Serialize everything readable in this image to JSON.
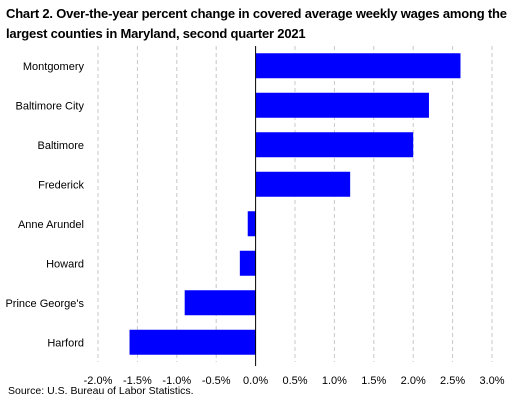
{
  "chart_data": {
    "type": "bar",
    "orientation": "horizontal",
    "title": "Chart 2. Over-the-year percent change in covered average weekly wages among the largest counties in Maryland, second quarter 2021",
    "categories": [
      "Montgomery",
      "Baltimore City",
      "Baltimore",
      "Frederick",
      "Anne Arundel",
      "Howard",
      "Prince George's",
      "Harford"
    ],
    "values": [
      2.6,
      2.2,
      2.0,
      1.2,
      -0.1,
      -0.2,
      -0.9,
      -1.6
    ],
    "xlim": [
      -2.0,
      3.0
    ],
    "xticks": [
      -2.0,
      -1.5,
      -1.0,
      -0.5,
      0.0,
      0.5,
      1.0,
      1.5,
      2.0,
      2.5,
      3.0
    ],
    "xtick_labels": [
      "-2.0%",
      "-1.5%",
      "-1.0%",
      "-0.5%",
      "0.0%",
      "0.5%",
      "1.0%",
      "1.5%",
      "2.0%",
      "2.5%",
      "3.0%"
    ],
    "grid": "vertical dashed",
    "bar_color": "#0000ff",
    "source": "Source: U.S. Bureau of Labor Statistics."
  }
}
